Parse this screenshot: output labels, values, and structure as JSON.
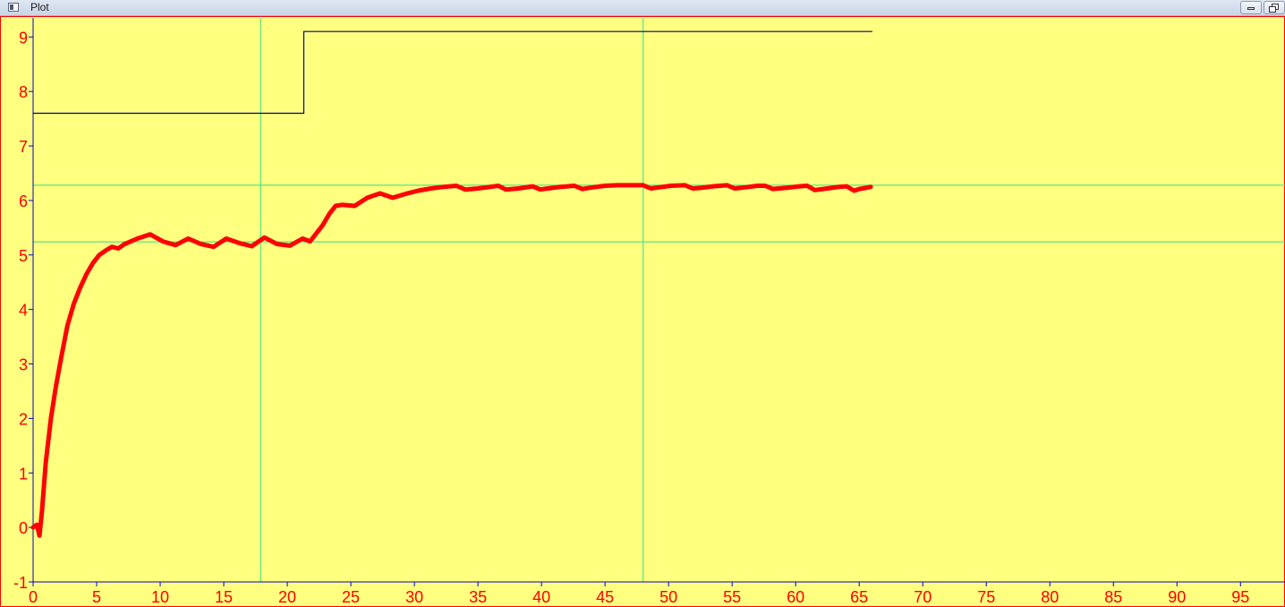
{
  "window": {
    "title": "Plot"
  },
  "colors": {
    "background": "#ffff80",
    "axis": "#0000cc",
    "grid": "#33dd88",
    "series_main": "#ff0000",
    "series_step": "#000080",
    "tick_text": "#ff0000",
    "frame": "#ff0000"
  },
  "chart_data": {
    "type": "line",
    "title": "",
    "xlabel": "",
    "ylabel": "",
    "xlim": [
      0,
      98.5
    ],
    "ylim": [
      -1,
      9.35
    ],
    "x_ticks": [
      0,
      5,
      10,
      15,
      20,
      25,
      30,
      35,
      40,
      45,
      50,
      55,
      60,
      65,
      70,
      75,
      80,
      85,
      90,
      95
    ],
    "y_ticks": [
      -1,
      0,
      1,
      2,
      3,
      4,
      5,
      6,
      7,
      8,
      9
    ],
    "grid": {
      "vertical": [
        17.9,
        48.0
      ],
      "horizontal": [
        5.24,
        6.28
      ]
    },
    "series": [
      {
        "style": "thick",
        "x": [
          0,
          0.3,
          0.5,
          0.7,
          1.0,
          1.4,
          1.8,
          2.2,
          2.7,
          3.2,
          3.7,
          4.2,
          4.7,
          5.2,
          5.7,
          6.2,
          6.7,
          7.2,
          8.2,
          9.2,
          10.2,
          11.2,
          12.2,
          13.2,
          14.2,
          15.2,
          16.2,
          17.2,
          18.2,
          19.2,
          20.2,
          21.2,
          21.8,
          22.3,
          22.8,
          23.3,
          23.8,
          24.3,
          25.3,
          26.3,
          27.3,
          28.3,
          29.3,
          30.3,
          31.3,
          32.3,
          33.3,
          34.0,
          35.0,
          36.0,
          36.6,
          37.2,
          38.2,
          39.3,
          39.9,
          40.5,
          41.5,
          42.6,
          43.2,
          44.0,
          45.0,
          46.0,
          47.0,
          48.0,
          48.6,
          49.2,
          50.2,
          51.3,
          51.9,
          52.5,
          53.5,
          54.6,
          55.2,
          56.0,
          57.0,
          57.6,
          58.2,
          59.2,
          60.3,
          60.9,
          61.5,
          62.5,
          63.4,
          64.0,
          64.6,
          65.0,
          65.5,
          65.9
        ],
        "y": [
          0,
          0.05,
          -0.15,
          0.3,
          1.2,
          2.0,
          2.6,
          3.1,
          3.7,
          4.1,
          4.4,
          4.65,
          4.85,
          5.0,
          5.08,
          5.15,
          5.12,
          5.2,
          5.3,
          5.38,
          5.25,
          5.18,
          5.3,
          5.2,
          5.15,
          5.3,
          5.22,
          5.16,
          5.32,
          5.2,
          5.17,
          5.3,
          5.25,
          5.4,
          5.55,
          5.75,
          5.9,
          5.92,
          5.9,
          6.05,
          6.13,
          6.05,
          6.12,
          6.18,
          6.22,
          6.25,
          6.27,
          6.2,
          6.22,
          6.25,
          6.27,
          6.2,
          6.22,
          6.26,
          6.2,
          6.22,
          6.25,
          6.27,
          6.21,
          6.24,
          6.27,
          6.28,
          6.28,
          6.28,
          6.22,
          6.24,
          6.27,
          6.28,
          6.22,
          6.23,
          6.26,
          6.28,
          6.22,
          6.24,
          6.27,
          6.27,
          6.21,
          6.23,
          6.26,
          6.27,
          6.19,
          6.22,
          6.25,
          6.26,
          6.18,
          6.21,
          6.23,
          6.25
        ]
      },
      {
        "style": "thin",
        "x": [
          0,
          21.3,
          21.3,
          66.0
        ],
        "y": [
          7.6,
          7.6,
          9.1,
          9.1
        ]
      }
    ]
  }
}
